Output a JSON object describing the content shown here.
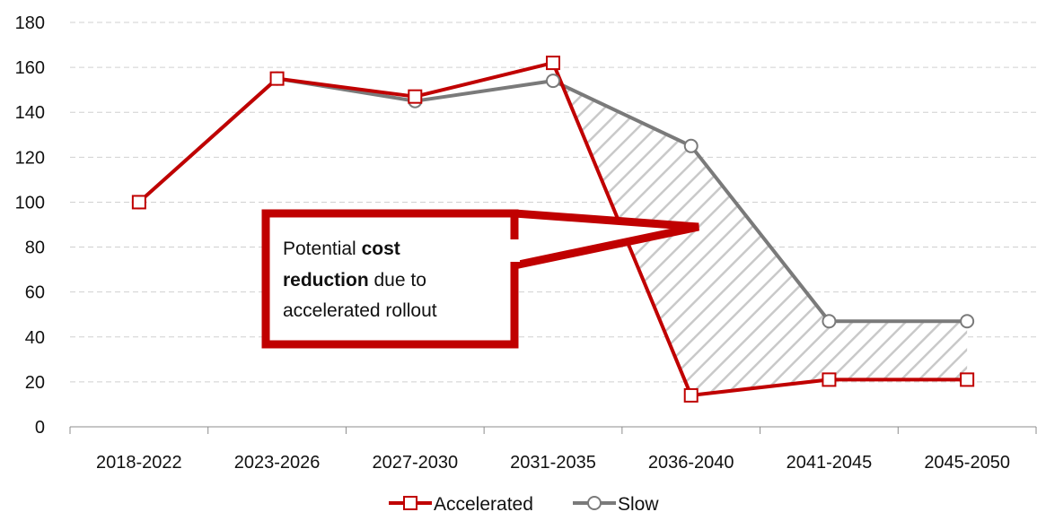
{
  "chart_data": {
    "type": "line",
    "categories": [
      "2018-2022",
      "2023-2026",
      "2027-2030",
      "2031-2035",
      "2036-2040",
      "2041-2045",
      "2045-2050"
    ],
    "series": [
      {
        "name": "Accelerated",
        "values": [
          100,
          155,
          147,
          162,
          14,
          21,
          21
        ],
        "color": "#c00000",
        "marker": "square"
      },
      {
        "name": "Slow",
        "values": [
          100,
          155,
          145,
          154,
          125,
          47,
          47
        ],
        "color": "#7a7a7a",
        "marker": "circle"
      }
    ],
    "y_ticks": [
      "0",
      "20",
      "40",
      "60",
      "80",
      "100",
      "120",
      "140",
      "160",
      "180"
    ],
    "ylim": [
      0,
      180
    ],
    "grid": "horizontal dashed",
    "legend_position": "bottom",
    "shaded_region": "hatched area between Slow and Accelerated from 2031-2035 to 2045-2050",
    "annotation": {
      "line1_pre": "Potential ",
      "line1_bold": "cost",
      "line2_bold": "reduction",
      "line2_post": " due to",
      "line3": "accelerated rollout"
    }
  }
}
